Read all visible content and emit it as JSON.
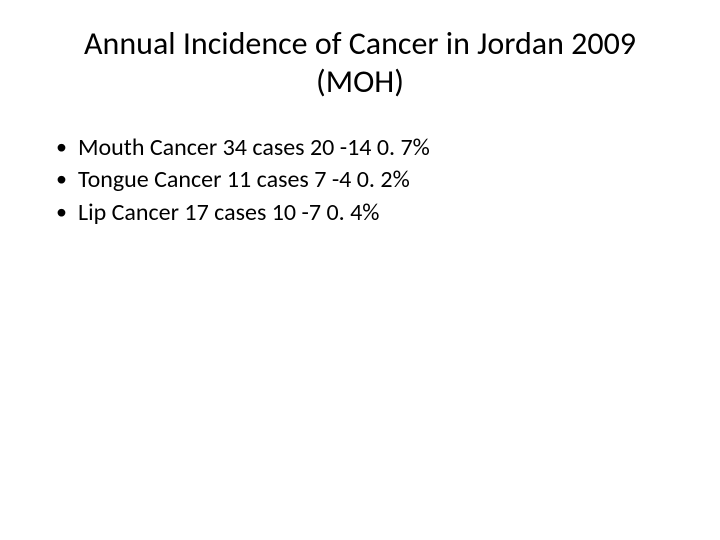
{
  "slide": {
    "title": "Annual Incidence of Cancer in Jordan 2009 (MOH)",
    "title_fontsize": 32,
    "title_color": "#000000",
    "body_fontsize": 24,
    "body_color": "#000000",
    "background_color": "#ffffff",
    "bullets": [
      {
        "text": "Mouth Cancer 34 cases 20 -14  0. 7%"
      },
      {
        "text": "Tongue Cancer 11 cases 7 -4   0. 2%"
      },
      {
        "text": "Lip Cancer 17 cases 10 -7      0. 4%"
      }
    ]
  }
}
